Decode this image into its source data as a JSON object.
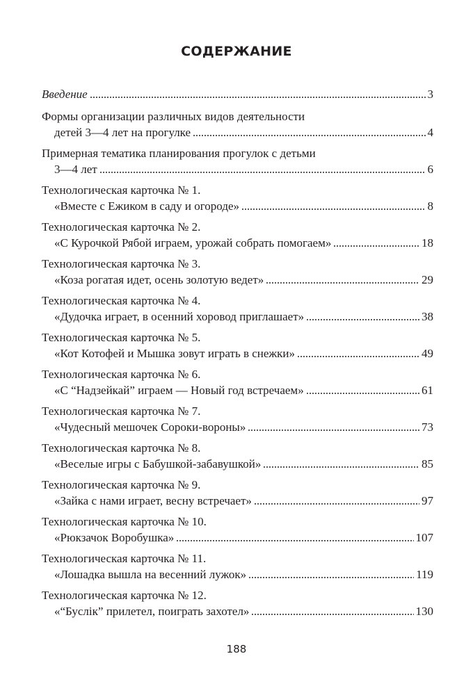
{
  "title": "СОДЕРЖАНИЕ",
  "entries": [
    {
      "lines": [],
      "last": "Введение",
      "page": "3",
      "italic": true
    },
    {
      "lines": [
        "Формы организации различных видов деятельности"
      ],
      "last": "детей 3—4 лет на прогулке",
      "page": "4"
    },
    {
      "lines": [
        "Примерная тематика планирования прогулок с детьми"
      ],
      "last": "3—4 лет",
      "page": "6"
    },
    {
      "lines": [
        "Технологическая карточка № 1."
      ],
      "last": "«Вместе с Ежиком в саду и огороде»",
      "page": "8"
    },
    {
      "lines": [
        "Технологическая карточка № 2."
      ],
      "last": "«С Курочкой Рябой играем, урожай собрать помогаем»",
      "page": "18"
    },
    {
      "lines": [
        "Технологическая карточка № 3."
      ],
      "last": "«Коза рогатая идет, осень золотую ведет»",
      "page": "29"
    },
    {
      "lines": [
        "Технологическая карточка № 4."
      ],
      "last": "«Дудочка играет, в осенний хоровод приглашает»",
      "page": "38"
    },
    {
      "lines": [
        "Технологическая карточка № 5."
      ],
      "last": "«Кот Котофей и Мышка зовут играть в снежки»",
      "page": "49"
    },
    {
      "lines": [
        "Технологическая карточка № 6."
      ],
      "last": "«С “Надзейкай” играем — Новый год встречаем»",
      "page": "61"
    },
    {
      "lines": [
        "Технологическая карточка № 7."
      ],
      "last": "«Чудесный мешочек Сороки-вороны»",
      "page": "73"
    },
    {
      "lines": [
        "Технологическая карточка № 8."
      ],
      "last": "«Веселые игры с Бабушкой-забавушкой»",
      "page": "85"
    },
    {
      "lines": [
        "Технологическая карточка № 9."
      ],
      "last": "«Зайка с нами играет, весну встречает»",
      "page": "97"
    },
    {
      "lines": [
        "Технологическая карточка № 10."
      ],
      "last": "«Рюкзачок Воробушка»",
      "page": "107"
    },
    {
      "lines": [
        "Технологическая карточка № 11."
      ],
      "last": "«Лошадка вышла на весенний лужок»",
      "page": "119"
    },
    {
      "lines": [
        "Технологическая карточка № 12."
      ],
      "last": "«“Буслік” прилетел, поиграть захотел»",
      "page": "130"
    }
  ],
  "folio": "188"
}
